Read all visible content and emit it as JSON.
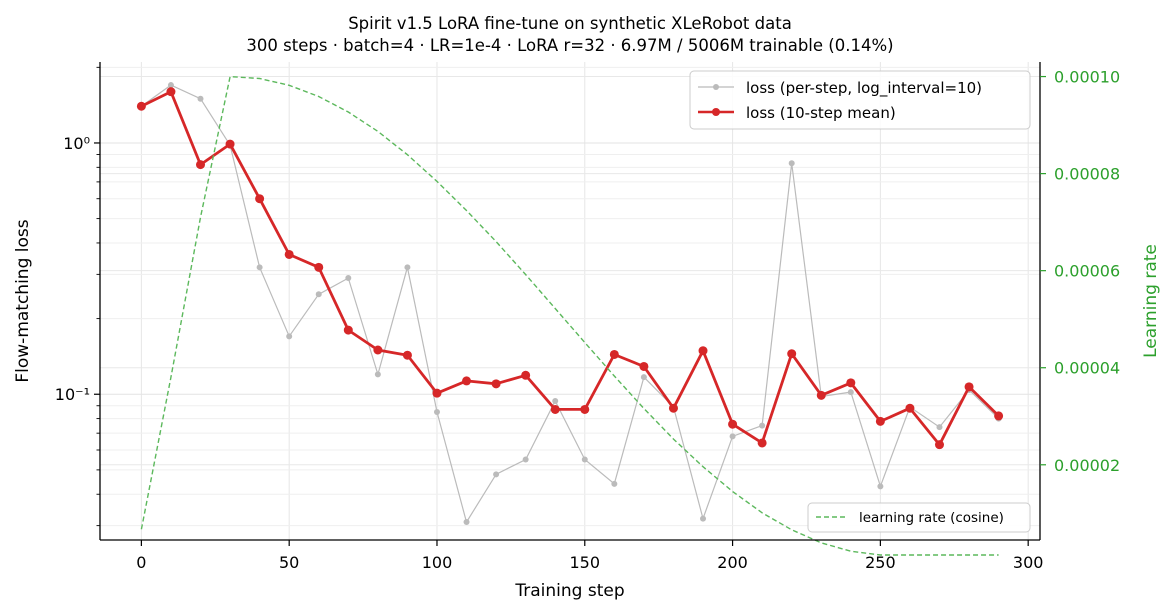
{
  "chart_data": {
    "type": "line",
    "title": "Spirit v1.5 LoRA fine-tune on synthetic XLeRobot data",
    "subtitle": "300 steps · batch=4 · LR=1e-4 · LoRA r=32 · 6.97M / 5006M trainable (0.14%)",
    "xlabel": "Training step",
    "ylabel": "Flow-matching loss",
    "y2label": "Learning rate",
    "xlim": [
      -14,
      304
    ],
    "ylim": [
      0.0263,
      2.1
    ],
    "yscale": "log",
    "y2lim": [
      4.5e-06,
      0.000103
    ],
    "xticks": [
      0,
      50,
      100,
      150,
      200,
      250,
      300
    ],
    "xtick_labels": [
      "0",
      "50",
      "100",
      "150",
      "200",
      "250",
      "300"
    ],
    "yticks": [
      0.1,
      1
    ],
    "ytick_labels": [
      "10⁻¹",
      "10⁰"
    ],
    "y2ticks": [
      2e-05,
      4e-05,
      6e-05,
      8e-05,
      0.0001
    ],
    "y2tick_labels": [
      "0.00002",
      "0.00004",
      "0.00006",
      "0.00008",
      "0.00010"
    ],
    "grid": true,
    "series": [
      {
        "name": "loss (per-step, log_interval=10)",
        "color": "#bbbbbb",
        "axis": "left",
        "x": [
          0,
          10,
          20,
          30,
          40,
          50,
          60,
          70,
          80,
          90,
          100,
          110,
          120,
          130,
          140,
          150,
          160,
          170,
          180,
          190,
          200,
          210,
          220,
          230,
          240,
          250,
          260,
          270,
          280,
          290
        ],
        "values": [
          1.4,
          1.7,
          1.5,
          0.98,
          0.32,
          0.17,
          0.25,
          0.29,
          0.12,
          0.32,
          0.085,
          0.031,
          0.048,
          0.055,
          0.094,
          0.055,
          0.044,
          0.117,
          0.089,
          0.032,
          0.068,
          0.075,
          0.83,
          0.098,
          0.102,
          0.043,
          0.089,
          0.074,
          0.104,
          0.08
        ]
      },
      {
        "name": "loss (10-step mean)",
        "color": "#d62728",
        "axis": "left",
        "x": [
          0,
          10,
          20,
          30,
          40,
          50,
          60,
          70,
          80,
          90,
          100,
          110,
          120,
          130,
          140,
          150,
          160,
          170,
          180,
          190,
          200,
          210,
          220,
          230,
          240,
          250,
          260,
          270,
          280,
          290
        ],
        "values": [
          1.4,
          1.6,
          0.82,
          0.99,
          0.6,
          0.36,
          0.32,
          0.18,
          0.15,
          0.143,
          0.101,
          0.113,
          0.11,
          0.119,
          0.087,
          0.087,
          0.144,
          0.129,
          0.088,
          0.149,
          0.076,
          0.064,
          0.145,
          0.099,
          0.111,
          0.078,
          0.088,
          0.063,
          0.107,
          0.082
        ]
      },
      {
        "name": "learning rate (cosine)",
        "color": "#5cb85c",
        "axis": "right",
        "style": "dashed",
        "x": [
          0,
          10,
          20,
          30,
          40,
          50,
          60,
          70,
          80,
          90,
          100,
          110,
          120,
          130,
          140,
          150,
          160,
          170,
          180,
          190,
          200,
          210,
          220,
          230,
          240,
          250,
          260,
          270,
          280,
          290
        ],
        "values": [
          6.7e-06,
          3.8e-05,
          7.1e-05,
          0.0001,
          9.96e-05,
          9.82e-05,
          9.59e-05,
          9.27e-05,
          8.87e-05,
          8.39e-05,
          7.84e-05,
          7.24e-05,
          6.6e-05,
          5.92e-05,
          5.22e-05,
          4.52e-05,
          3.83e-05,
          3.16e-05,
          2.53e-05,
          1.96e-05,
          1.45e-05,
          1.01e-05,
          6.6e-06,
          3.9e-06,
          2.2e-06,
          1.4e-06,
          1.4e-06,
          1.4e-06,
          1.4e-06,
          1.4e-06
        ]
      }
    ],
    "legend_upper": "top-right",
    "legend_lower": "bottom-right"
  }
}
